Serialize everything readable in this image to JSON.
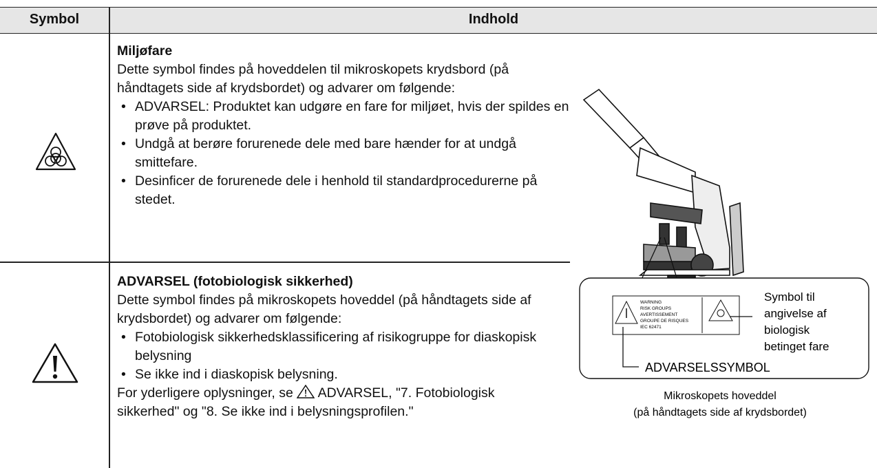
{
  "header": {
    "symbol": "Symbol",
    "content": "Indhold"
  },
  "rows": [
    {
      "title": "Miljøfare",
      "intro": "Dette symbol findes på hoveddelen til mikroskopets krydsbord (på håndtagets side af krydsbordet) og advarer om følgende:",
      "bullets": [
        "ADVARSEL: Produktet kan udgøre en fare for miljøet, hvis der spildes en prøve på produktet.",
        "Undgå at berøre forurenede dele med bare hænder for at undgå smittefare.",
        "Desinficer de forurenede dele i henhold til standardprocedurerne på stedet."
      ]
    },
    {
      "title": "ADVARSEL (fotobiologisk sikkerhed)",
      "intro": "Dette symbol findes på mikroskopets hoveddel (på håndtagets side af krydsbordet) og advarer om følgende:",
      "bullets": [
        "Fotobiologisk sikkerhedsklassificering af risikogruppe for diaskopisk belysning",
        "Se ikke ind i diaskopisk belysning."
      ],
      "note_before": "For yderligere oplysninger, se",
      "note_after": "ADVARSEL, \"7. Fotobiologisk sikkerhed\" og \"8. Se ikke ind i belysningsprofilen.\""
    }
  ],
  "figure": {
    "label_lines": [
      "WARNING",
      "RISK GROUPS",
      "AVERTISSEMENT",
      "GROUPE DE RISQUES",
      "IEC 62471"
    ],
    "biohazard_callout": [
      "Symbol til",
      "angivelse af",
      "biologisk",
      "betinget fare"
    ],
    "warning_callout": "ADVARSELSSYMBOL",
    "caption": [
      "Mikroskopets hoveddel",
      "(på håndtagets side af krydsbordet)"
    ]
  }
}
